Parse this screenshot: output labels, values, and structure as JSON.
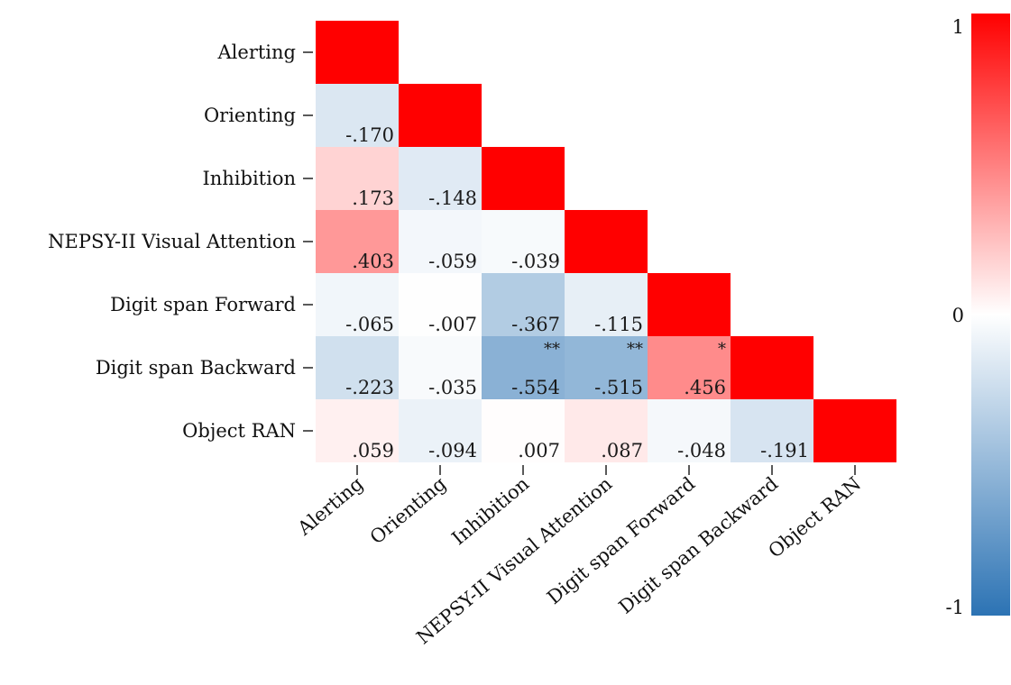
{
  "chart_data": {
    "type": "heatmap",
    "title": "",
    "variables": [
      "Alerting",
      "Orienting",
      "Inhibition",
      "NEPSY-II Visual Attention",
      "Digit span Forward",
      "Digit span Backward",
      "Object RAN"
    ],
    "cells": [
      {
        "row": 1,
        "col": 0,
        "value": -0.17,
        "label": "-.170",
        "sig": ""
      },
      {
        "row": 2,
        "col": 0,
        "value": 0.173,
        "label": ".173",
        "sig": ""
      },
      {
        "row": 2,
        "col": 1,
        "value": -0.148,
        "label": "-.148",
        "sig": ""
      },
      {
        "row": 3,
        "col": 0,
        "value": 0.403,
        "label": ".403",
        "sig": ""
      },
      {
        "row": 3,
        "col": 1,
        "value": -0.059,
        "label": "-.059",
        "sig": ""
      },
      {
        "row": 3,
        "col": 2,
        "value": -0.039,
        "label": "-.039",
        "sig": ""
      },
      {
        "row": 4,
        "col": 0,
        "value": -0.065,
        "label": "-.065",
        "sig": ""
      },
      {
        "row": 4,
        "col": 1,
        "value": -0.007,
        "label": "-.007",
        "sig": ""
      },
      {
        "row": 4,
        "col": 2,
        "value": -0.367,
        "label": "-.367",
        "sig": ""
      },
      {
        "row": 4,
        "col": 3,
        "value": -0.115,
        "label": "-.115",
        "sig": ""
      },
      {
        "row": 5,
        "col": 0,
        "value": -0.223,
        "label": "-.223",
        "sig": ""
      },
      {
        "row": 5,
        "col": 1,
        "value": -0.035,
        "label": "-.035",
        "sig": ""
      },
      {
        "row": 5,
        "col": 2,
        "value": -0.554,
        "label": "-.554",
        "sig": "**"
      },
      {
        "row": 5,
        "col": 3,
        "value": -0.515,
        "label": "-.515",
        "sig": "**"
      },
      {
        "row": 5,
        "col": 4,
        "value": 0.456,
        "label": ".456",
        "sig": "*"
      },
      {
        "row": 6,
        "col": 0,
        "value": 0.059,
        "label": ".059",
        "sig": ""
      },
      {
        "row": 6,
        "col": 1,
        "value": -0.094,
        "label": "-.094",
        "sig": ""
      },
      {
        "row": 6,
        "col": 2,
        "value": 0.007,
        "label": ".007",
        "sig": ""
      },
      {
        "row": 6,
        "col": 3,
        "value": 0.087,
        "label": ".087",
        "sig": ""
      },
      {
        "row": 6,
        "col": 4,
        "value": -0.048,
        "label": "-.048",
        "sig": ""
      },
      {
        "row": 6,
        "col": 5,
        "value": -0.191,
        "label": "-.191",
        "sig": ""
      }
    ],
    "diagonal_value": 1,
    "colorbar": {
      "range": [
        -1,
        1
      ],
      "ticks": [
        {
          "value": 1,
          "label": "1"
        },
        {
          "value": 0,
          "label": "0"
        },
        {
          "value": -1,
          "label": "-1"
        }
      ],
      "colors": {
        "high": "#ff0000",
        "mid": "#ffffff",
        "low": "#2c73b4"
      }
    },
    "legend_placement": "right",
    "grid": false
  }
}
